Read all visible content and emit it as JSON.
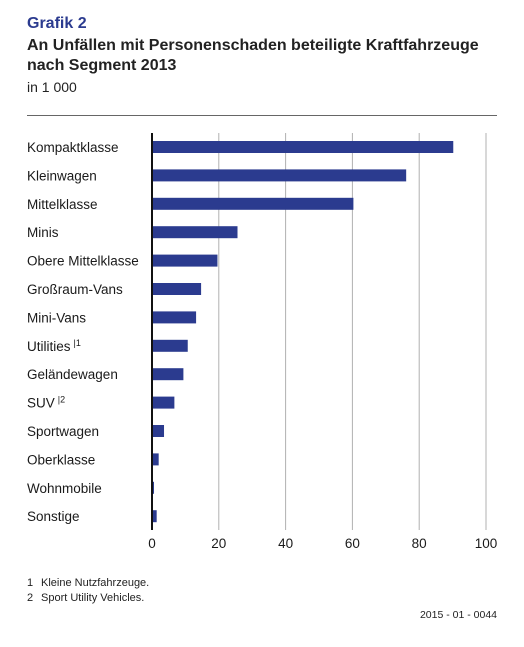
{
  "header": {
    "grafik": "Grafik 2",
    "title_line1": "An Unfällen mit Personenschaden beteiligte Kraftfahrzeuge",
    "title_line2": "nach Segment 2013",
    "unit": "in 1 000"
  },
  "chart_data": {
    "type": "bar",
    "orientation": "horizontal",
    "categories": [
      "Kompaktklasse",
      "Kleinwagen",
      "Mittelklasse",
      "Minis",
      "Obere Mittelklasse",
      "Großraum-Vans",
      "Mini-Vans",
      "Utilities",
      "Geländewagen",
      "SUV",
      "Sportwagen",
      "Oberklasse",
      "Wohnmobile",
      "Sonstige"
    ],
    "category_footnote_marks": [
      "",
      "",
      "",
      "",
      "",
      "",
      "",
      "1",
      "",
      "2",
      "",
      "",
      "",
      ""
    ],
    "values": [
      90.2,
      76.1,
      60.3,
      25.6,
      19.6,
      14.7,
      13.2,
      10.7,
      9.4,
      6.7,
      3.6,
      2.0,
      0.6,
      1.4
    ],
    "xlim": [
      0,
      100
    ],
    "xticks": [
      0,
      20,
      40,
      60,
      80,
      100
    ],
    "grid": true,
    "bar_color": "#2b3b8f",
    "grid_color": "#b0b0b0"
  },
  "footnotes": [
    {
      "num": "1",
      "text": "Kleine Nutzfahrzeuge."
    },
    {
      "num": "2",
      "text": "Sport Utility Vehicles."
    }
  ],
  "code": "2015 - 01 - 0044"
}
